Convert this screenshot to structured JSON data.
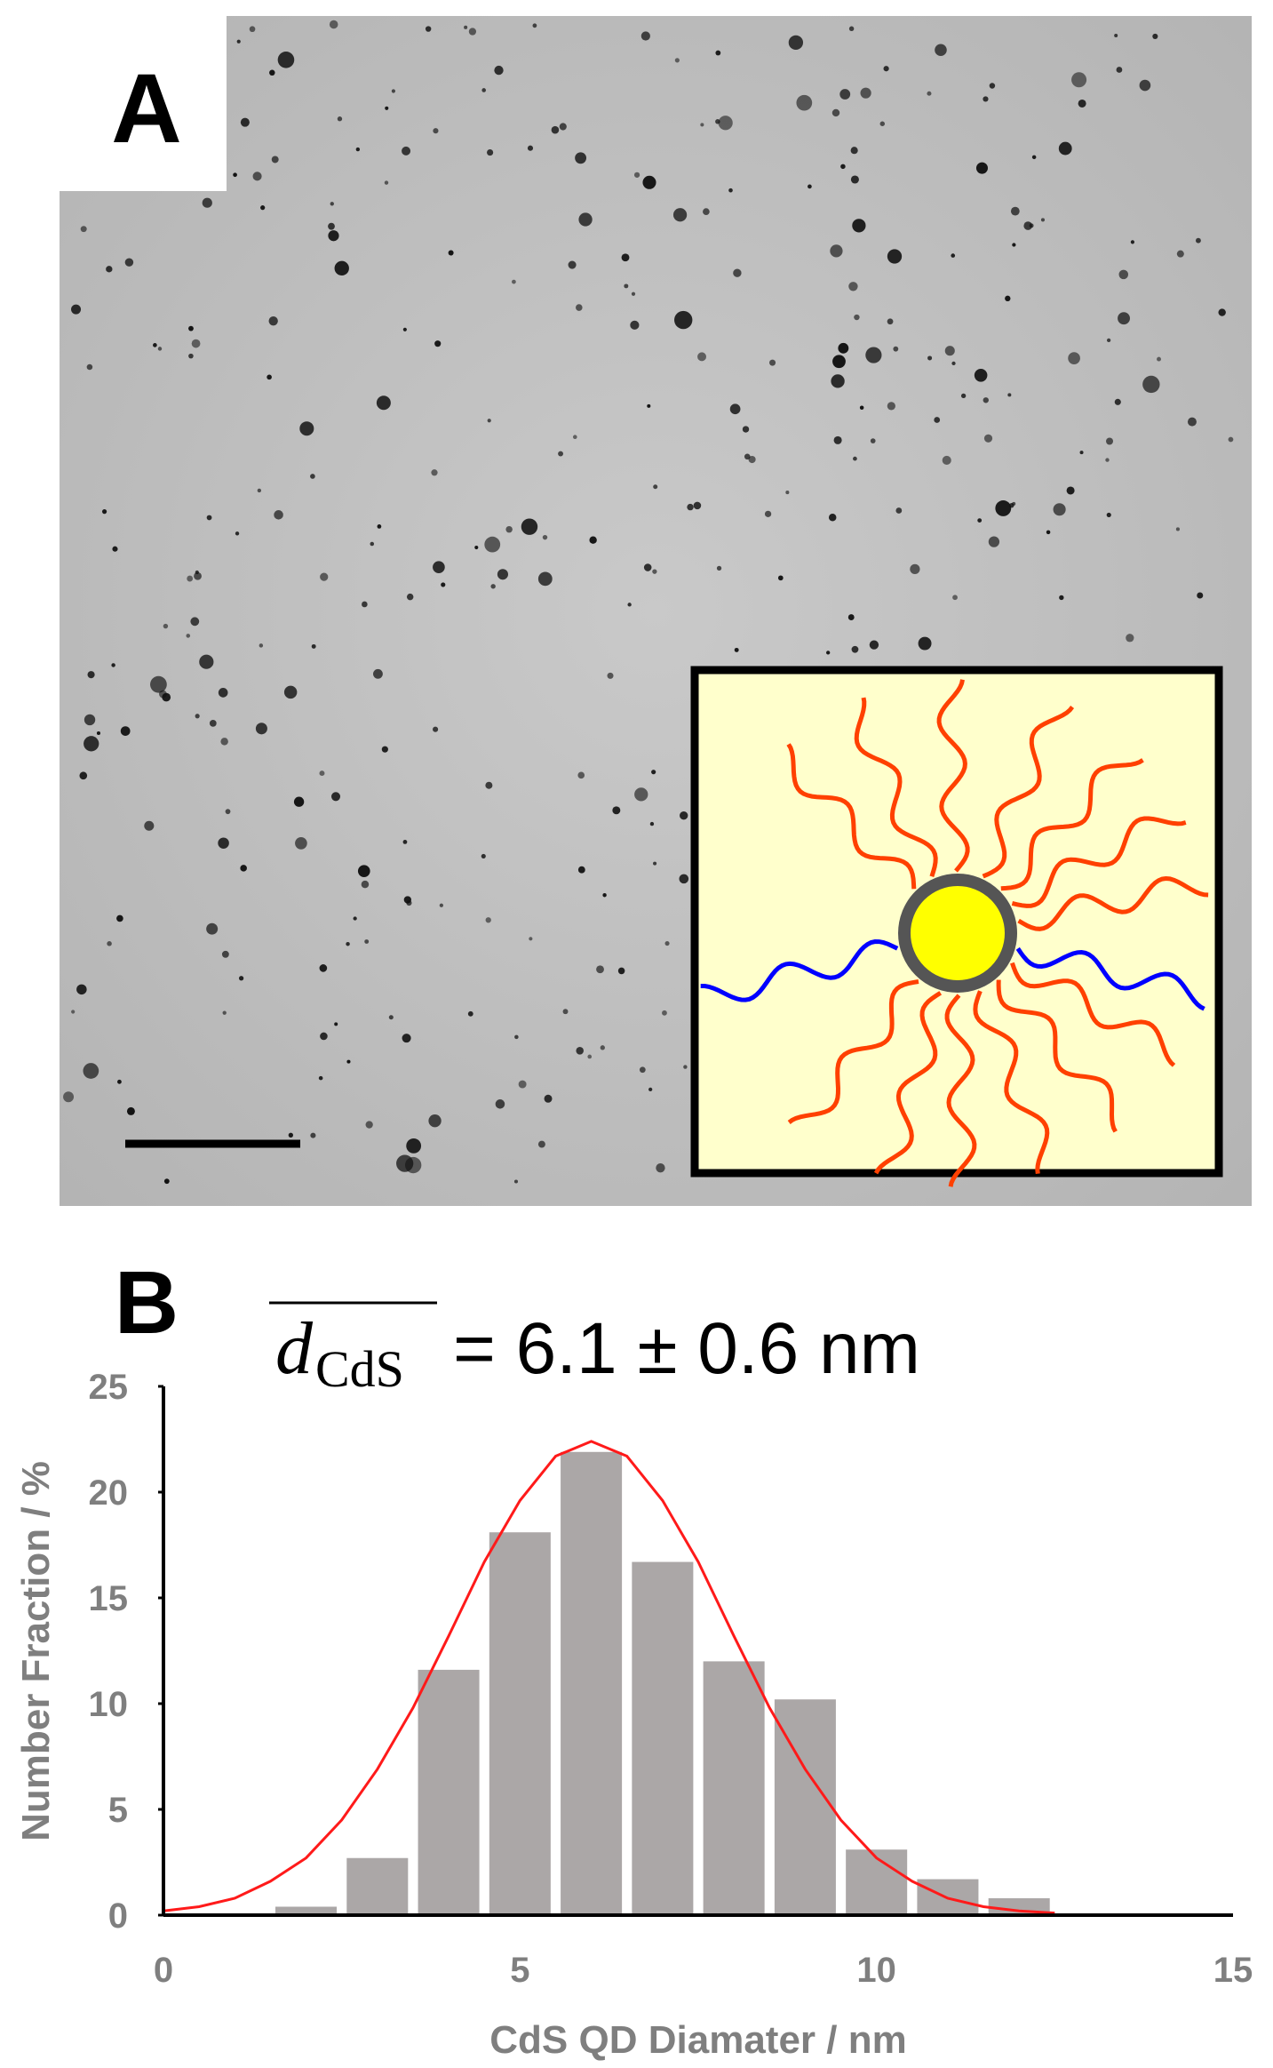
{
  "panel_a": {
    "label": "A"
  },
  "chart_data": {
    "type": "histogram",
    "panel_label": "B",
    "title_symbol": "d",
    "title_subscript": "CdS",
    "title": "= 6.1 ± 0.6 nm",
    "x_label": "CdS QD Diamater / nm",
    "y_label": "Number Fraction  / %",
    "bins": [
      1.5,
      2.5,
      3.5,
      4.5,
      5.5,
      6.5,
      7.5,
      8.5,
      9.5,
      10.5,
      11.5,
      12.5
    ],
    "values": [
      0.4,
      2.7,
      11.6,
      18.1,
      21.9,
      16.7,
      12.0,
      10.2,
      3.1,
      1.7,
      0.8
    ],
    "color": "#aba7a7",
    "fit": {
      "color": "#ff1a1a",
      "x": [
        0,
        0.5,
        1,
        1.5,
        2,
        2.5,
        3,
        3.5,
        4,
        4.5,
        5,
        5.5,
        6,
        6.5,
        7,
        7.5,
        8,
        8.5,
        9,
        9.5,
        10,
        10.5,
        11,
        11.5,
        12,
        12.5
      ],
      "values": [
        0.2,
        0.4,
        0.8,
        1.6,
        2.7,
        4.5,
        6.9,
        9.8,
        13.2,
        16.7,
        19.6,
        21.7,
        22.4,
        21.7,
        19.6,
        16.7,
        13.2,
        9.8,
        6.9,
        4.5,
        2.7,
        1.6,
        0.8,
        0.4,
        0.2,
        0.1
      ]
    },
    "xlim": [
      0,
      15
    ],
    "xticks": [
      0,
      5,
      10,
      15
    ],
    "ylim": [
      0,
      25
    ],
    "yticks": [
      0,
      5,
      10,
      15,
      20,
      25
    ]
  }
}
